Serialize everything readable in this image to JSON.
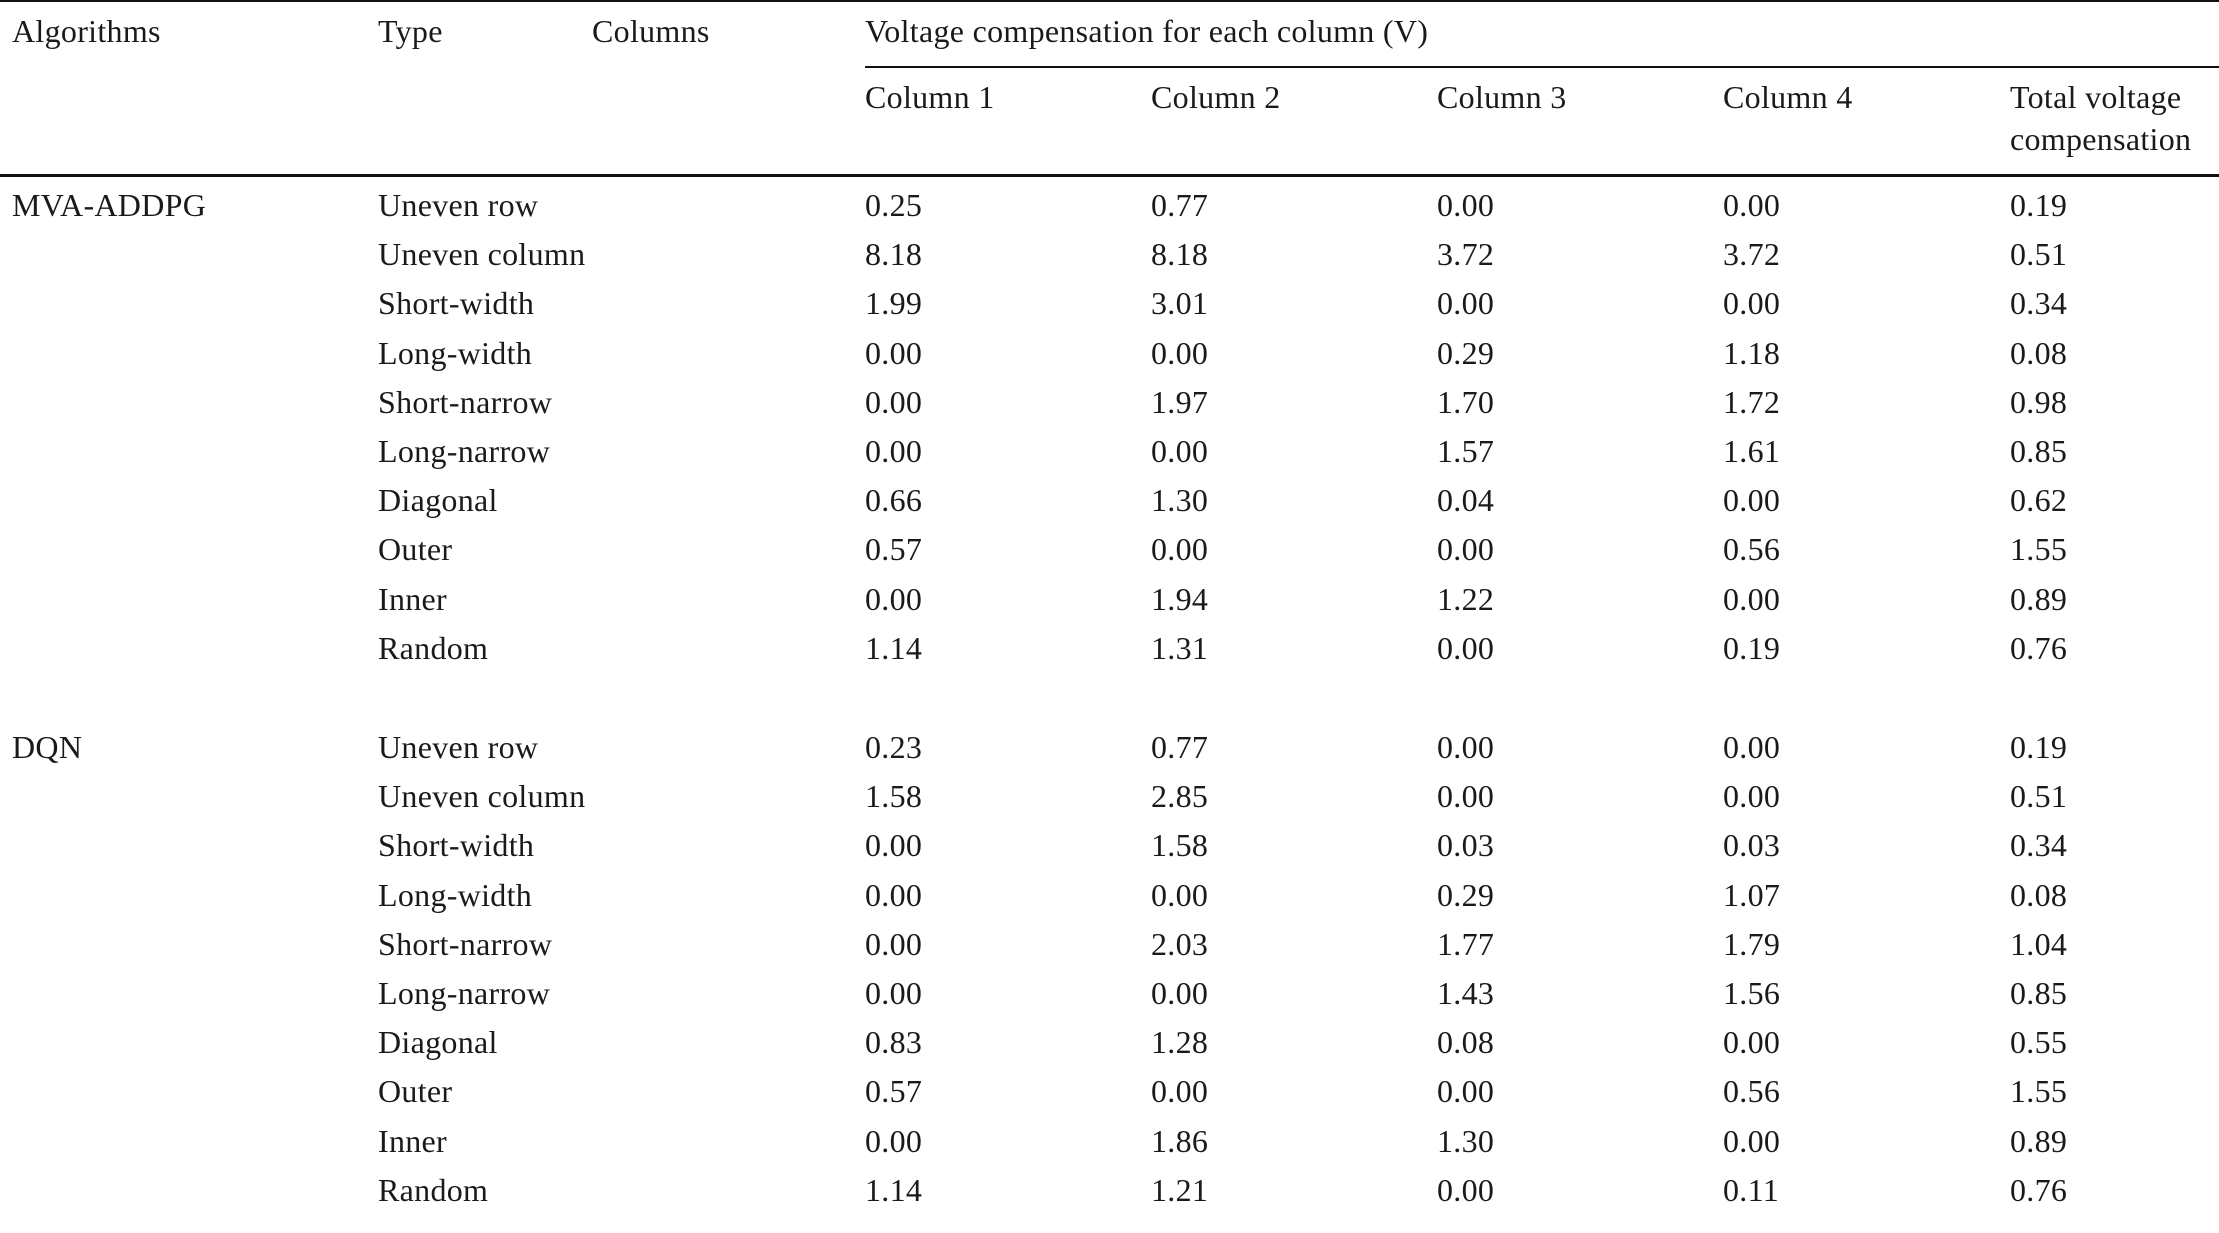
{
  "header": {
    "algorithms": "Algorithms",
    "type": "Type",
    "columns": "Columns",
    "group_title": "Voltage compensation for each column (V)",
    "column_1": "Column 1",
    "column_2": "Column 2",
    "column_3": "Column 3",
    "column_4": "Column 4",
    "total_line1": "Total voltage",
    "total_line2": "compensation"
  },
  "groups": [
    {
      "algorithm": "MVA-ADDPG",
      "rows": [
        {
          "type": "Uneven row",
          "c1": "0.25",
          "c2": "0.77",
          "c3": "0.00",
          "c4": "0.00",
          "total": "0.19"
        },
        {
          "type": "Uneven column",
          "c1": "8.18",
          "c2": "8.18",
          "c3": "3.72",
          "c4": "3.72",
          "total": "0.51"
        },
        {
          "type": "Short-width",
          "c1": "1.99",
          "c2": "3.01",
          "c3": "0.00",
          "c4": "0.00",
          "total": "0.34"
        },
        {
          "type": "Long-width",
          "c1": "0.00",
          "c2": "0.00",
          "c3": "0.29",
          "c4": "1.18",
          "total": "0.08"
        },
        {
          "type": "Short-narrow",
          "c1": "0.00",
          "c2": "1.97",
          "c3": "1.70",
          "c4": "1.72",
          "total": "0.98"
        },
        {
          "type": "Long-narrow",
          "c1": "0.00",
          "c2": "0.00",
          "c3": "1.57",
          "c4": "1.61",
          "total": "0.85"
        },
        {
          "type": "Diagonal",
          "c1": "0.66",
          "c2": "1.30",
          "c3": "0.04",
          "c4": "0.00",
          "total": "0.62"
        },
        {
          "type": "Outer",
          "c1": "0.57",
          "c2": "0.00",
          "c3": "0.00",
          "c4": "0.56",
          "total": "1.55"
        },
        {
          "type": "Inner",
          "c1": "0.00",
          "c2": "1.94",
          "c3": "1.22",
          "c4": "0.00",
          "total": "0.89"
        },
        {
          "type": "Random",
          "c1": "1.14",
          "c2": "1.31",
          "c3": "0.00",
          "c4": "0.19",
          "total": "0.76"
        }
      ]
    },
    {
      "algorithm": "DQN",
      "rows": [
        {
          "type": "Uneven row",
          "c1": "0.23",
          "c2": "0.77",
          "c3": "0.00",
          "c4": "0.00",
          "total": "0.19"
        },
        {
          "type": "Uneven column",
          "c1": "1.58",
          "c2": "2.85",
          "c3": "0.00",
          "c4": "0.00",
          "total": "0.51"
        },
        {
          "type": "Short-width",
          "c1": "0.00",
          "c2": "1.58",
          "c3": "0.03",
          "c4": "0.03",
          "total": "0.34"
        },
        {
          "type": "Long-width",
          "c1": "0.00",
          "c2": "0.00",
          "c3": "0.29",
          "c4": "1.07",
          "total": "0.08"
        },
        {
          "type": "Short-narrow",
          "c1": "0.00",
          "c2": "2.03",
          "c3": "1.77",
          "c4": "1.79",
          "total": "1.04"
        },
        {
          "type": "Long-narrow",
          "c1": "0.00",
          "c2": "0.00",
          "c3": "1.43",
          "c4": "1.56",
          "total": "0.85"
        },
        {
          "type": "Diagonal",
          "c1": "0.83",
          "c2": "1.28",
          "c3": "0.08",
          "c4": "0.00",
          "total": "0.55"
        },
        {
          "type": "Outer",
          "c1": "0.57",
          "c2": "0.00",
          "c3": "0.00",
          "c4": "0.56",
          "total": "1.55"
        },
        {
          "type": "Inner",
          "c1": "0.00",
          "c2": "1.86",
          "c3": "1.30",
          "c4": "0.00",
          "total": "0.89"
        },
        {
          "type": "Random",
          "c1": "1.14",
          "c2": "1.21",
          "c3": "0.00",
          "c4": "0.11",
          "total": "0.76"
        }
      ]
    }
  ]
}
